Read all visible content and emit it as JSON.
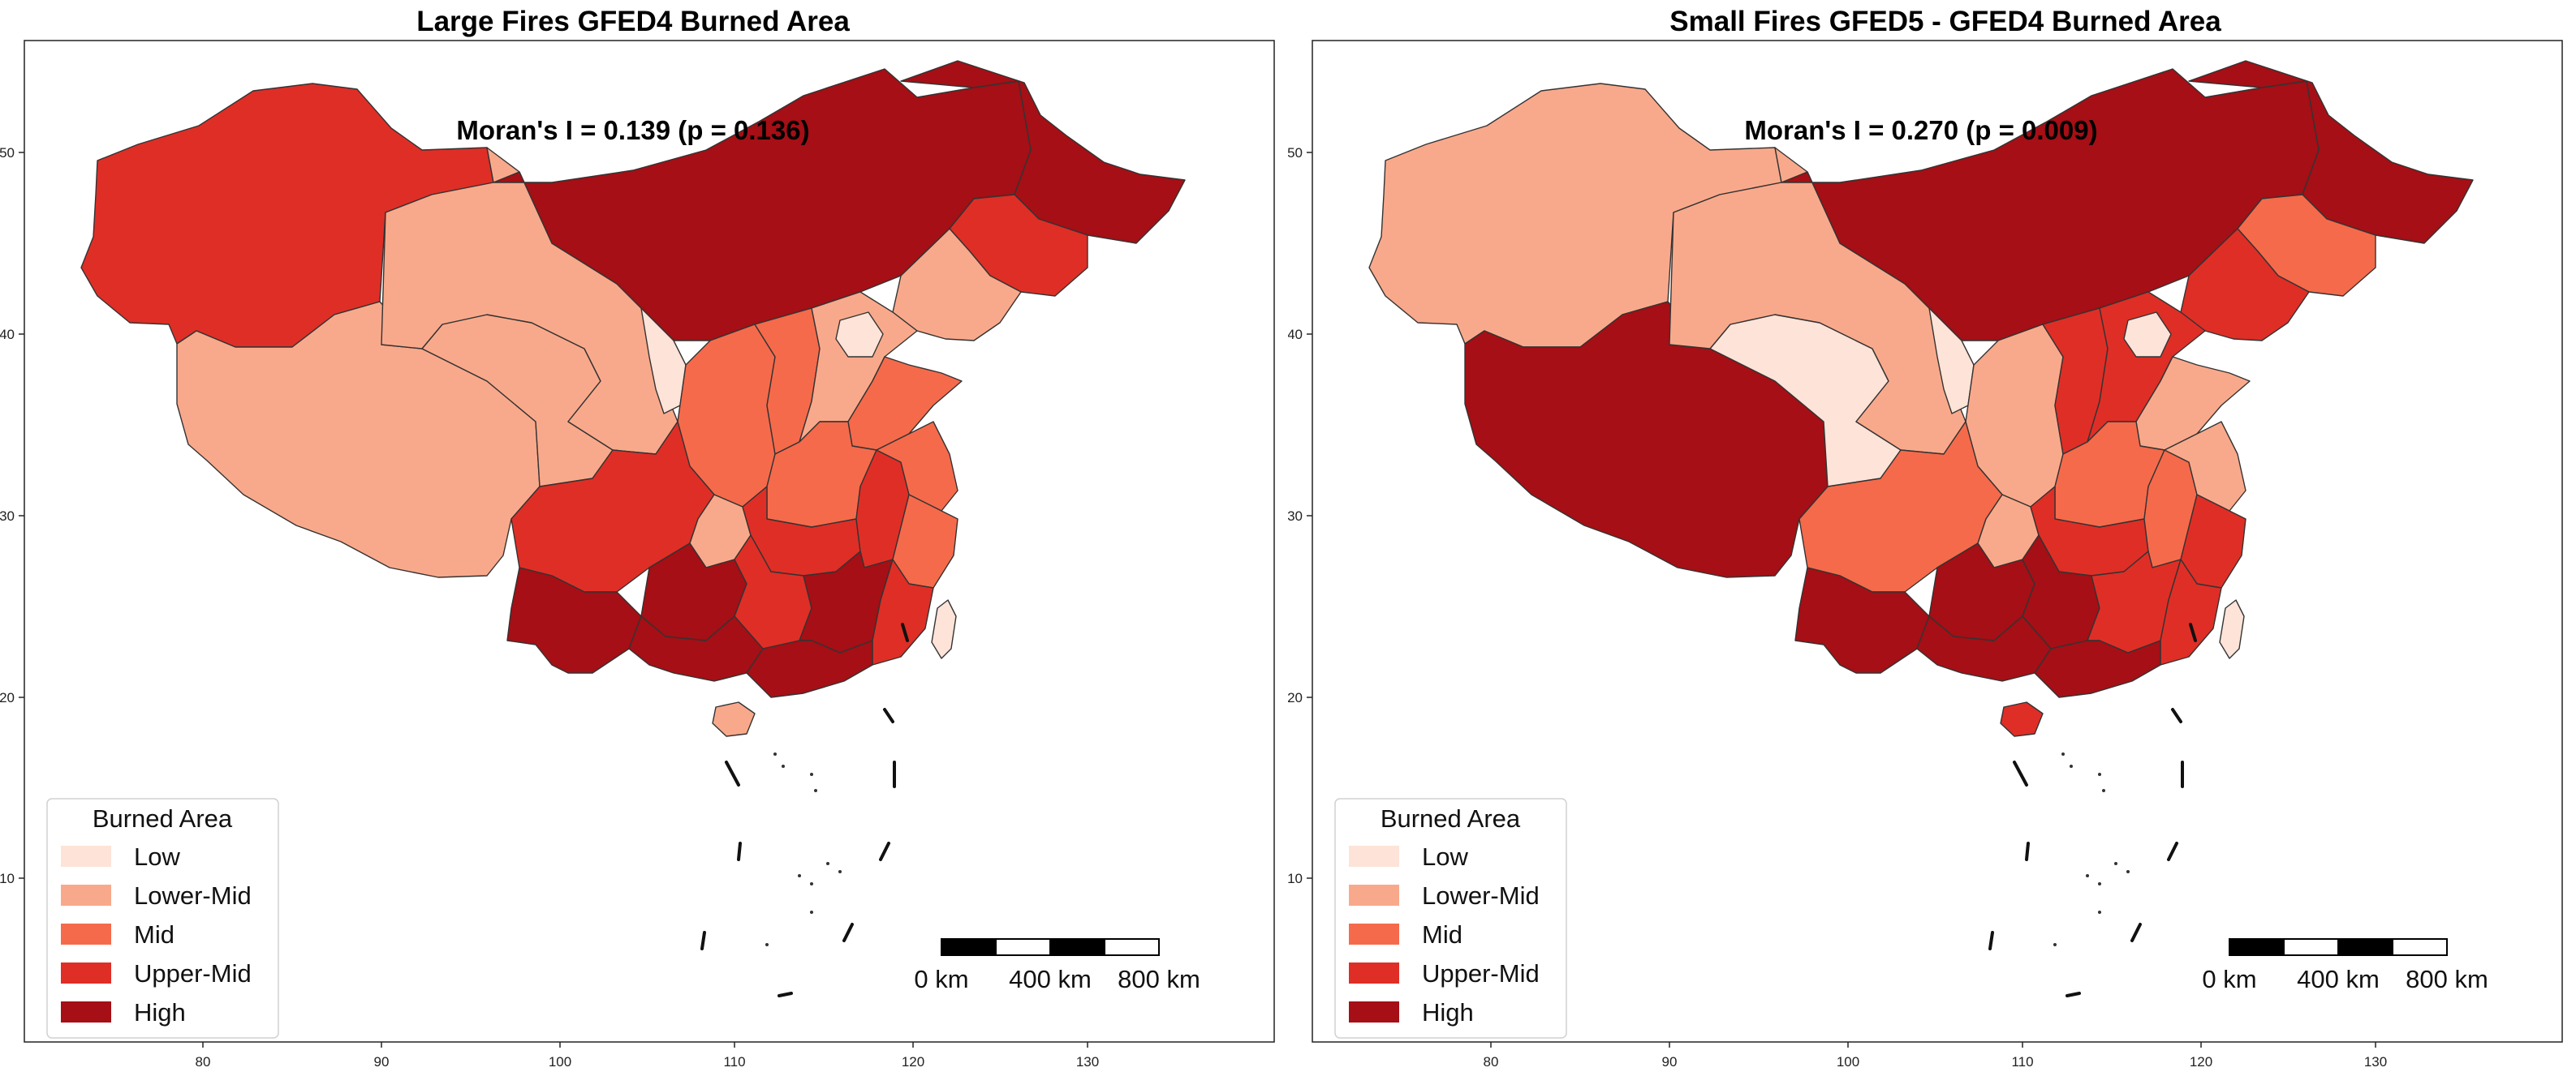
{
  "colors": {
    "Low": "#fde3d8",
    "Lower-Mid": "#f9a98b",
    "Mid": "#f56a4b",
    "Upper-Mid": "#df2e26",
    "High": "#a50f15"
  },
  "legend": {
    "title": "Burned Area",
    "items": [
      {
        "label": "Low",
        "color": "#fde3d8"
      },
      {
        "label": "Lower-Mid",
        "color": "#f9a98b"
      },
      {
        "label": "Mid",
        "color": "#f56a4b"
      },
      {
        "label": "Upper-Mid",
        "color": "#df2e26"
      },
      {
        "label": "High",
        "color": "#a50f15"
      }
    ]
  },
  "axis": {
    "x_ticks": [
      "80",
      "90",
      "100",
      "110",
      "120",
      "130"
    ],
    "y_ticks": [
      "50",
      "40",
      "30",
      "20",
      "10"
    ]
  },
  "scale_bar": {
    "labels": [
      "0 km",
      "400 km",
      "800 km"
    ]
  },
  "chart_data": [
    {
      "type": "choropleth",
      "title": "Large Fires GFED4 Burned Area",
      "annotation": "Moran's I = 0.139 (p = 0.136)",
      "regions": {
        "xinjiang": "Upper-Mid",
        "tibet": "Lower-Mid",
        "qinghai": "Lower-Mid",
        "gansu": "Lower-Mid",
        "inner_mongolia": "High",
        "heilongjiang": "High",
        "jilin": "Upper-Mid",
        "liaoning": "Lower-Mid",
        "ningxia": "Low",
        "shaanxi": "Mid",
        "shanxi": "Mid",
        "hebei": "Lower-Mid",
        "beijing_tianjin": "Low",
        "shandong": "Mid",
        "henan": "Mid",
        "sichuan": "Upper-Mid",
        "chongqing": "Lower-Mid",
        "hubei": "Upper-Mid",
        "anhui": "Upper-Mid",
        "jiangsu": "Mid",
        "zhejiang": "Mid",
        "guizhou": "High",
        "hunan": "Upper-Mid",
        "jiangxi": "High",
        "fujian": "Upper-Mid",
        "yunnan": "High",
        "guangxi": "High",
        "guangdong": "High",
        "hainan": "Lower-Mid",
        "taiwan": "Low"
      }
    },
    {
      "type": "choropleth",
      "title": "Small Fires GFED5 - GFED4 Burned Area",
      "annotation": "Moran's I = 0.270 (p = 0.009)",
      "regions": {
        "xinjiang": "Lower-Mid",
        "tibet": "High",
        "qinghai": "Low",
        "gansu": "Lower-Mid",
        "inner_mongolia": "High",
        "heilongjiang": "High",
        "jilin": "Mid",
        "liaoning": "Upper-Mid",
        "ningxia": "Low",
        "shaanxi": "Lower-Mid",
        "shanxi": "Upper-Mid",
        "hebei": "Upper-Mid",
        "beijing_tianjin": "Low",
        "shandong": "Lower-Mid",
        "henan": "Mid",
        "sichuan": "Mid",
        "chongqing": "Lower-Mid",
        "hubei": "Upper-Mid",
        "anhui": "Mid",
        "jiangsu": "Lower-Mid",
        "zhejiang": "Upper-Mid",
        "guizhou": "High",
        "hunan": "High",
        "jiangxi": "Upper-Mid",
        "fujian": "Upper-Mid",
        "yunnan": "High",
        "guangxi": "High",
        "guangdong": "High",
        "hainan": "Upper-Mid",
        "taiwan": "Low"
      }
    }
  ]
}
